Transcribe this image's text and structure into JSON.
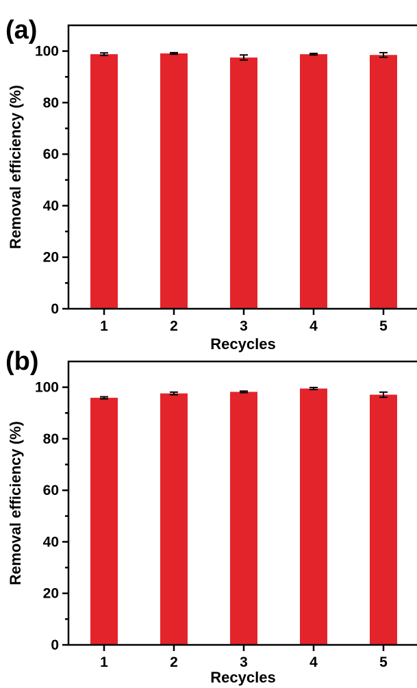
{
  "colors": {
    "bar": "#e3242b",
    "axis": "#000000",
    "background": "#ffffff"
  },
  "chart_data": [
    {
      "panel_label": "(a)",
      "type": "bar",
      "categories": [
        "1",
        "2",
        "3",
        "4",
        "5"
      ],
      "values": [
        98.8,
        99.1,
        97.5,
        98.8,
        98.5
      ],
      "errors": [
        0.5,
        0.3,
        1.0,
        0.3,
        0.9
      ],
      "xlabel": "Recycles",
      "ylabel": "Removal efficiency (%)",
      "ylim": [
        0,
        110
      ],
      "yticks": [
        0,
        20,
        40,
        60,
        80,
        100
      ],
      "grid": false
    },
    {
      "panel_label": "(b)",
      "type": "bar",
      "categories": [
        "1",
        "2",
        "3",
        "4",
        "5"
      ],
      "values": [
        95.9,
        97.6,
        98.2,
        99.5,
        97.1
      ],
      "errors": [
        0.4,
        0.5,
        0.3,
        0.4,
        1.0
      ],
      "xlabel": "Recycles",
      "ylabel": "Removal efficiency (%)",
      "ylim": [
        0,
        110
      ],
      "yticks": [
        0,
        20,
        40,
        60,
        80,
        100
      ],
      "grid": false
    }
  ]
}
